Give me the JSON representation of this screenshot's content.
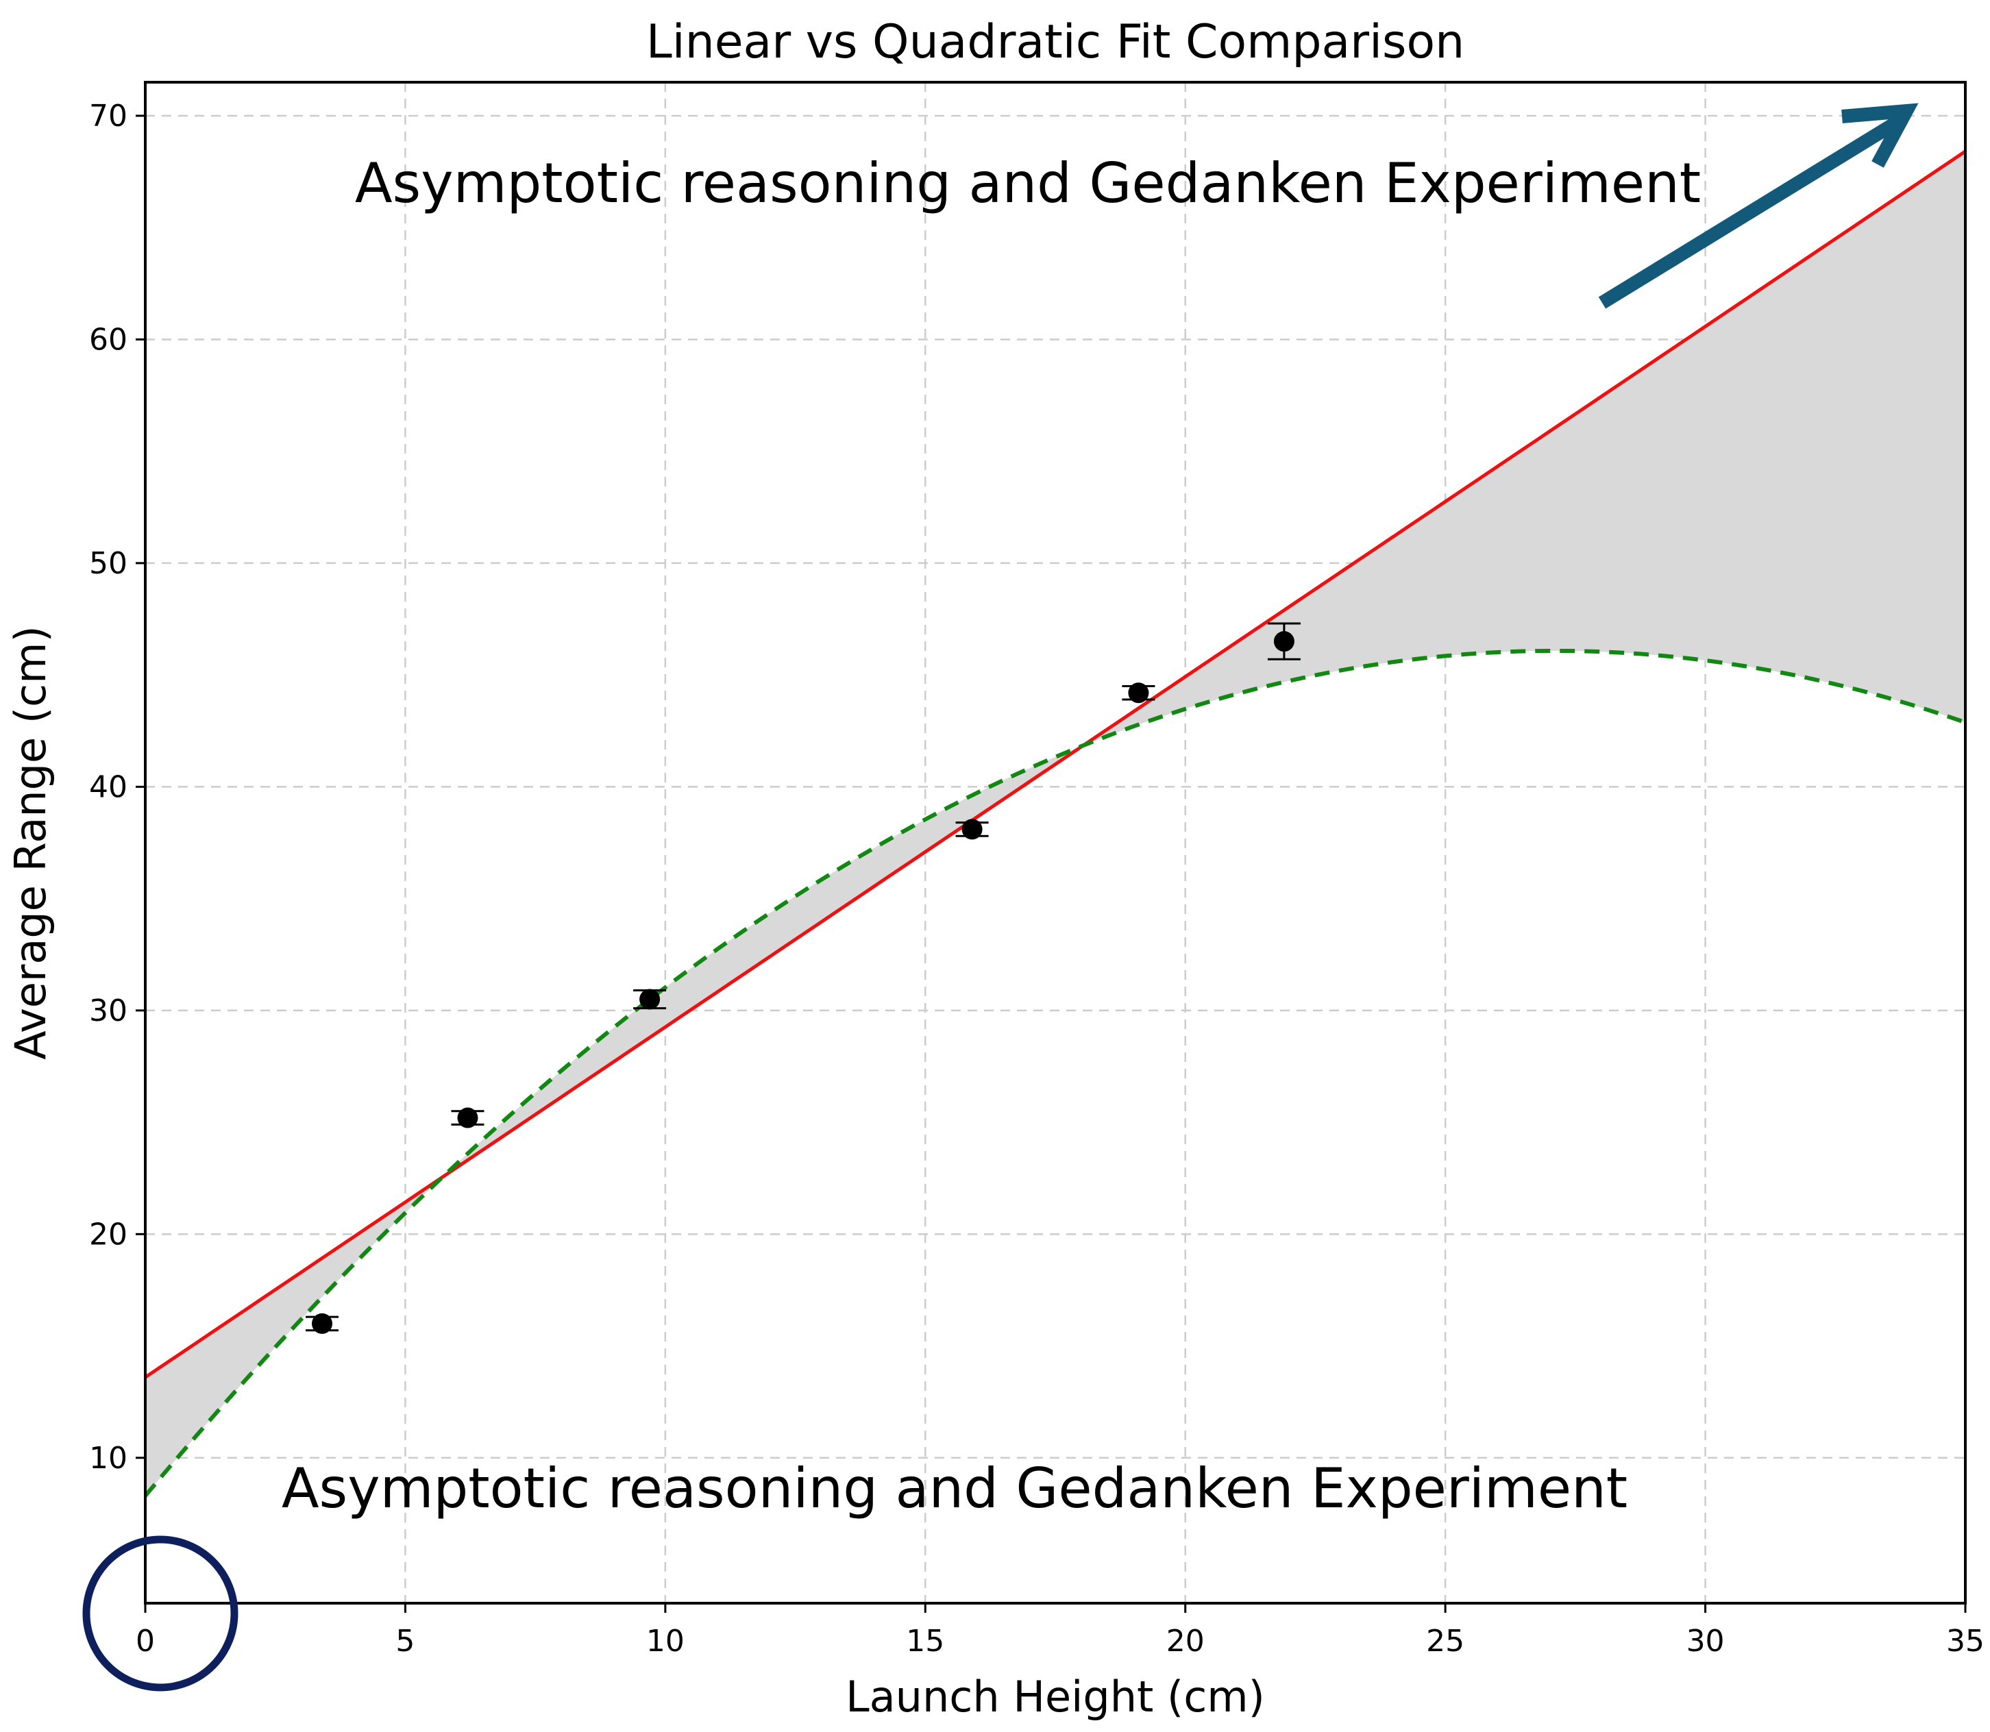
{
  "chart_data": {
    "type": "scatter",
    "title": "Linear vs Quadratic Fit Comparison",
    "xlabel": "Launch Height (cm)",
    "ylabel": "Average Range (cm)",
    "xlim": [
      0,
      35
    ],
    "ylim": [
      3.5,
      71.5
    ],
    "xticks": [
      0,
      5,
      10,
      15,
      20,
      25,
      30,
      35
    ],
    "yticks": [
      10,
      20,
      30,
      40,
      50,
      60,
      70
    ],
    "grid": true,
    "series": [
      {
        "kind": "points_with_errorbars",
        "color": "#000000",
        "x": [
          3.4,
          6.2,
          9.7,
          15.9,
          19.1,
          21.9
        ],
        "y": [
          16.0,
          25.2,
          30.5,
          38.1,
          44.2,
          46.5
        ],
        "yerr": [
          0.3,
          0.3,
          0.4,
          0.3,
          0.3,
          0.8
        ]
      },
      {
        "kind": "linear_fit",
        "color": "#ee1111",
        "style": "solid",
        "intercept": 13.6,
        "slope": 1.566
      },
      {
        "kind": "quadratic_fit",
        "color": "#118811",
        "style": "dashed",
        "coefficients": {
          "a": -0.0514,
          "b": 2.787,
          "c": 8.3
        }
      }
    ],
    "shaded_region": {
      "between": [
        "linear_fit",
        "quadratic_fit"
      ],
      "color": "#d9d9d9"
    },
    "annotations": [
      {
        "text": "Asymptotic reasoning and Gedanken Experiment",
        "position": "top-center"
      },
      {
        "text": "Asymptotic reasoning and Gedanken Experiment",
        "position": "bottom-center"
      }
    ],
    "overlay_marks": [
      {
        "kind": "arrow",
        "color": "#135a7a",
        "direction": "up-right",
        "position": "top-right"
      },
      {
        "kind": "circle",
        "color": "#0d1f5c",
        "position": "origin"
      }
    ]
  }
}
